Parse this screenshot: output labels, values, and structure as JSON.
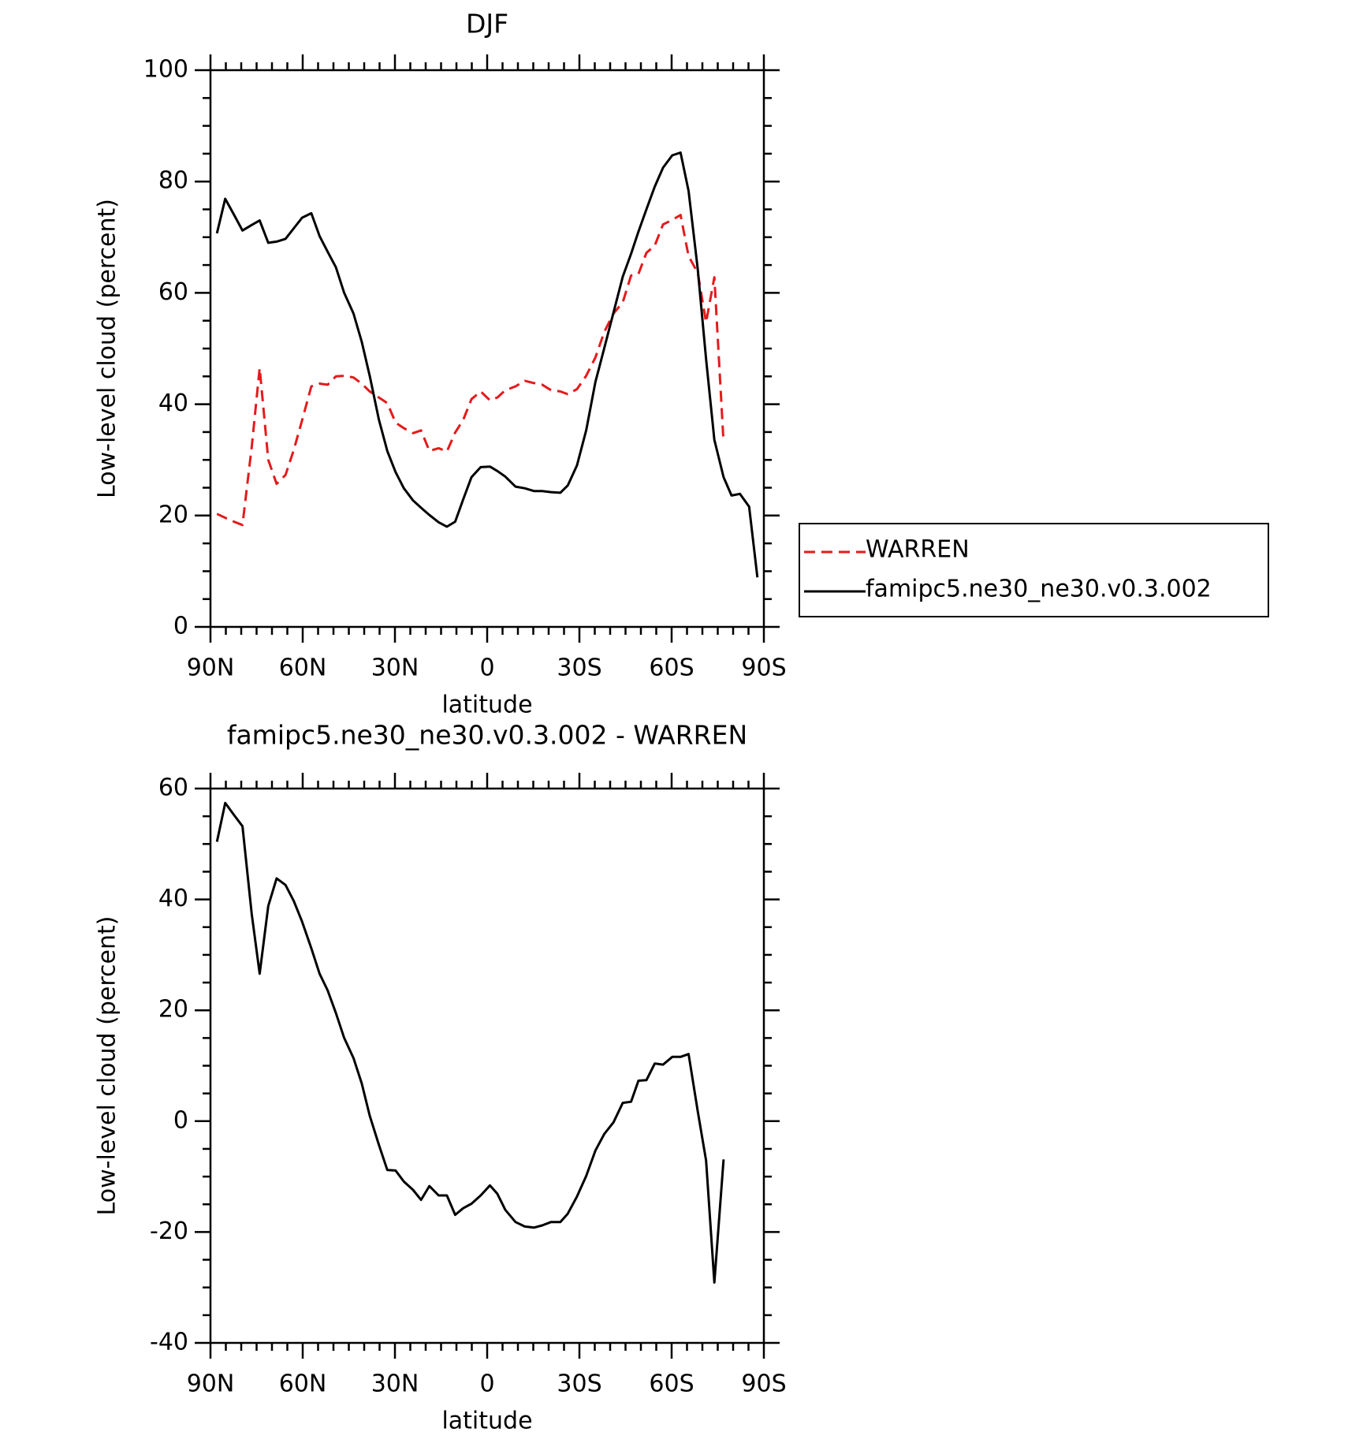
{
  "chart_data": [
    {
      "type": "line",
      "title": "DJF",
      "xlabel": "latitude",
      "ylabel": "Low-level cloud (percent)",
      "x": [
        87.9,
        85.2,
        82.3,
        79.6,
        76.6,
        74.0,
        71.2,
        68.5,
        65.6,
        62.9,
        60.2,
        57.2,
        54.5,
        51.9,
        49.2,
        46.5,
        43.5,
        40.8,
        38.2,
        35.2,
        32.5,
        29.8,
        27.1,
        24.1,
        21.5,
        18.8,
        15.8,
        13.1,
        10.4,
        7.8,
        5.1,
        2.1,
        -0.9,
        -3.3,
        -5.9,
        -9.2,
        -12.2,
        -15.2,
        -17.9,
        -20.8,
        -23.8,
        -26.2,
        -29.2,
        -32.2,
        -35.2,
        -38.1,
        -41.1,
        -44.1,
        -46.8,
        -49.2,
        -51.8,
        -54.5,
        -57.2,
        -60.2,
        -62.9,
        -65.5,
        -68.5,
        -71.2,
        -73.9,
        -76.9,
        -79.5,
        -82.2,
        -85.2,
        -87.9
      ],
      "xlim": [
        90,
        -90
      ],
      "xticks": [
        {
          "value": 90,
          "label": "90N"
        },
        {
          "value": 60,
          "label": "60N"
        },
        {
          "value": 30,
          "label": "30N"
        },
        0,
        {
          "value": -30,
          "label": "30S"
        },
        {
          "value": -60,
          "label": "60S"
        },
        {
          "value": -90,
          "label": "90S"
        }
      ],
      "ylim": [
        0,
        100
      ],
      "yticks": [
        0,
        20,
        40,
        60,
        80,
        100
      ],
      "series": [
        {
          "name": "WARREN",
          "color": "#e41a1c",
          "dash": true,
          "values": [
            20.3,
            19.6,
            18.9,
            18.3,
            32.3,
            46.5,
            30.0,
            25.7,
            27.3,
            31.8,
            37.1,
            43.2,
            43.7,
            43.5,
            45.0,
            45.1,
            44.8,
            43.7,
            42.3,
            41.2,
            40.2,
            36.7,
            35.7,
            34.8,
            35.3,
            31.6,
            32.1,
            31.5,
            34.9,
            37.2,
            40.9,
            42.3,
            40.7,
            41.2,
            42.5,
            43.2,
            44.2,
            43.8,
            43.5,
            42.5,
            42.3,
            41.8,
            42.7,
            45.1,
            48.4,
            53.0,
            56.3,
            58.3,
            63.1,
            63.4,
            67.2,
            68.5,
            72.3,
            73.1,
            74.0,
            66.6,
            63.6,
            54.7,
            62.8,
            33.1,
            null,
            null,
            null,
            null
          ]
        },
        {
          "name": "famipc5.ne30_ne30.v0.3.002",
          "color": "#000000",
          "dash": false,
          "values": [
            70.7,
            76.9,
            74.0,
            71.2,
            72.2,
            73.0,
            69.0,
            69.2,
            69.7,
            71.6,
            73.5,
            74.3,
            70.2,
            67.4,
            64.6,
            60.0,
            56.3,
            51.2,
            45.1,
            37.2,
            31.6,
            27.8,
            24.9,
            22.7,
            21.4,
            20.1,
            18.8,
            18.0,
            18.9,
            22.9,
            26.9,
            28.7,
            28.8,
            28.0,
            27.0,
            25.2,
            24.9,
            24.4,
            24.4,
            24.2,
            24.1,
            25.4,
            29.0,
            35.3,
            44.0,
            50.1,
            56.5,
            62.9,
            67.0,
            71.0,
            75.0,
            79.1,
            82.5,
            84.7,
            85.2,
            78.3,
            64.3,
            48.1,
            33.6,
            26.9,
            23.6,
            23.9,
            21.6,
            8.9
          ]
        }
      ]
    },
    {
      "type": "line",
      "title": "famipc5.ne30_ne30.v0.3.002 - WARREN",
      "xlabel": "latitude",
      "ylabel": "Low-level cloud (percent)",
      "x": [
        87.9,
        85.2,
        82.3,
        79.6,
        76.6,
        74.0,
        71.2,
        68.5,
        65.6,
        62.9,
        60.2,
        57.2,
        54.5,
        51.9,
        49.2,
        46.5,
        43.5,
        40.8,
        38.2,
        35.2,
        32.5,
        29.8,
        27.1,
        24.1,
        21.5,
        18.8,
        15.8,
        13.1,
        10.4,
        7.8,
        5.1,
        2.1,
        -0.9,
        -3.3,
        -5.9,
        -9.2,
        -12.2,
        -15.2,
        -17.9,
        -20.8,
        -23.8,
        -26.2,
        -29.2,
        -32.2,
        -35.2,
        -38.1,
        -41.1,
        -44.1,
        -46.8,
        -49.2,
        -51.8,
        -54.5,
        -57.2,
        -60.2,
        -62.9,
        -65.5,
        -68.5,
        -71.2,
        -73.9,
        -76.9,
        -79.5,
        -82.2,
        -85.2,
        -87.9
      ],
      "xlim": [
        90,
        -90
      ],
      "xticks": [
        {
          "value": 90,
          "label": "90N"
        },
        {
          "value": 60,
          "label": "60N"
        },
        {
          "value": 30,
          "label": "30N"
        },
        0,
        {
          "value": -30,
          "label": "30S"
        },
        {
          "value": -60,
          "label": "60S"
        },
        {
          "value": -90,
          "label": "90S"
        }
      ],
      "ylim": [
        -40,
        60
      ],
      "yticks": [
        -40,
        -20,
        0,
        20,
        40,
        60
      ],
      "series": [
        {
          "color": "#000000",
          "dash": false,
          "values": [
            50.4,
            57.4,
            55.2,
            53.2,
            37.4,
            26.6,
            38.8,
            43.8,
            42.6,
            39.7,
            36.0,
            31.2,
            26.6,
            23.6,
            19.5,
            15.0,
            11.4,
            6.8,
            1.0,
            -4.3,
            -8.8,
            -8.9,
            -10.9,
            -12.4,
            -14.2,
            -11.7,
            -13.4,
            -13.4,
            -16.9,
            -15.7,
            -14.9,
            -13.4,
            -11.6,
            -13.1,
            -16.0,
            -18.2,
            -19.0,
            -19.2,
            -18.8,
            -18.2,
            -18.2,
            -16.7,
            -13.6,
            -9.9,
            -5.3,
            -2.3,
            -0.2,
            3.3,
            3.5,
            7.3,
            7.4,
            10.4,
            10.2,
            11.6,
            11.6,
            12.1,
            1.8,
            -7.1,
            -29.1,
            -6.9,
            null,
            null,
            null,
            null
          ]
        }
      ]
    }
  ]
}
